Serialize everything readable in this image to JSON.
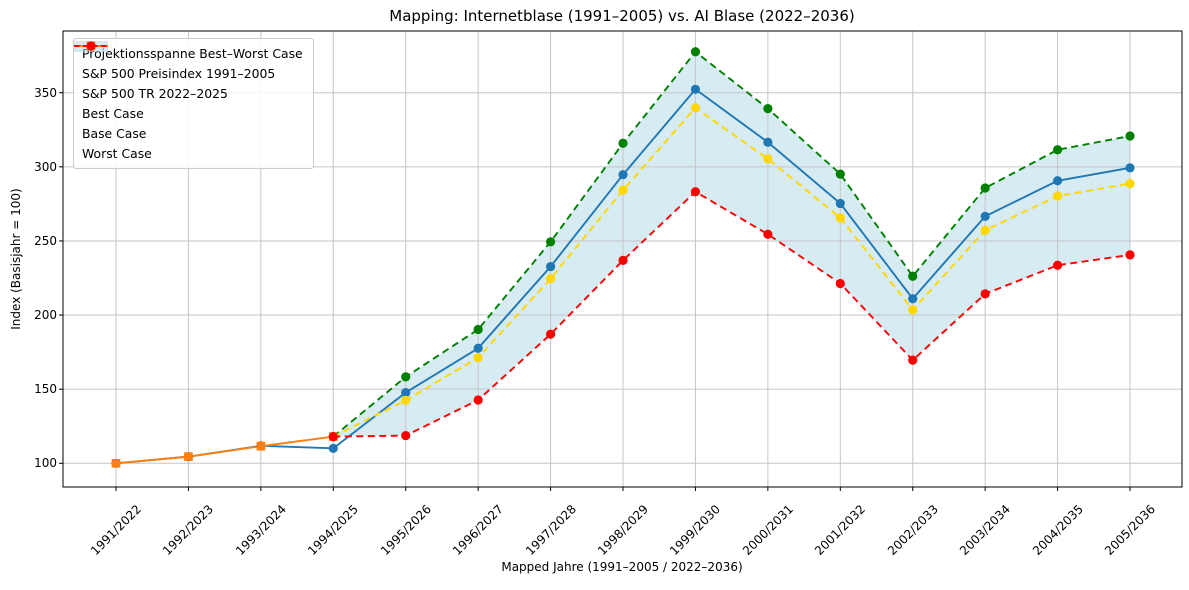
{
  "chart_data": {
    "type": "line",
    "title": "Mapping: Internetblase (1991–2005) vs. AI Blase (2022–2036)",
    "xlabel": "Mapped Jahre (1991–2005 / 2022–2036)",
    "ylabel": "Index (Basisjahr = 100)",
    "categories": [
      "1991/2022",
      "1992/2023",
      "1993/2024",
      "1994/2025",
      "1995/2026",
      "1996/2027",
      "1997/2028",
      "1998/2029",
      "1999/2030",
      "2000/2031",
      "2001/2032",
      "2002/2033",
      "2003/2034",
      "2004/2035",
      "2005/2036"
    ],
    "yticks": [
      100,
      150,
      200,
      250,
      300,
      350
    ],
    "ylim": [
      84,
      392
    ],
    "grid": true,
    "legend_position": "upper left",
    "band": {
      "label": "Projektionsspanne Best–Worst Case",
      "upper": "Best Case",
      "lower": "Worst Case",
      "color": "rgba(173,216,230,0.5)"
    },
    "series": [
      {
        "name": "S&P 500 Preisindex 1991–2005",
        "color": "#1f77b4",
        "line": "solid",
        "marker": "circle",
        "start_index": 0,
        "values": [
          100.0,
          104.5,
          111.8,
          110.1,
          147.7,
          177.6,
          232.7,
          294.7,
          352.3,
          316.6,
          275.3,
          211.0,
          266.6,
          290.6,
          299.3
        ]
      },
      {
        "name": "S&P 500 TR 2022–2025",
        "color": "#ff7f0e",
        "line": "solid",
        "marker": "square",
        "start_index": 0,
        "values": [
          100.0,
          104.5,
          111.5,
          118.0
        ]
      },
      {
        "name": "Best Case",
        "color": "#008000",
        "line": "dashed",
        "marker": "circle",
        "start_index": 3,
        "values": [
          118.0,
          158.3,
          190.3,
          249.4,
          315.9,
          377.6,
          339.3,
          295.1,
          226.2,
          285.7,
          311.5,
          320.8
        ]
      },
      {
        "name": "Base Case",
        "color": "#ffd700",
        "line": "dashed",
        "marker": "circle",
        "start_index": 3,
        "values": [
          118.0,
          142.5,
          171.3,
          224.5,
          284.3,
          339.8,
          305.4,
          265.6,
          203.5,
          257.2,
          280.3,
          288.7
        ]
      },
      {
        "name": "Worst Case",
        "color": "#ff0000",
        "line": "dashed",
        "marker": "circle",
        "start_index": 3,
        "values": [
          118.0,
          118.7,
          142.7,
          187.1,
          236.9,
          283.2,
          254.5,
          221.3,
          169.6,
          214.3,
          233.6,
          240.6
        ]
      }
    ]
  },
  "legend": {
    "entries": [
      {
        "label": "Projektionsspanne Best–Worst Case",
        "swatch": "patch",
        "color": "rgba(173,216,230,0.55)",
        "dash": false
      },
      {
        "label": "S&P 500 Preisindex 1991–2005",
        "swatch": "line-circle",
        "color": "#1f77b4",
        "dash": false
      },
      {
        "label": "S&P 500 TR 2022–2025",
        "swatch": "line-square",
        "color": "#ff7f0e",
        "dash": false
      },
      {
        "label": "Best Case",
        "swatch": "line-circle",
        "color": "#008000",
        "dash": true
      },
      {
        "label": "Base Case",
        "swatch": "line-circle",
        "color": "#ffd700",
        "dash": true
      },
      {
        "label": "Worst Case",
        "swatch": "line-circle",
        "color": "#ff0000",
        "dash": true
      }
    ]
  }
}
